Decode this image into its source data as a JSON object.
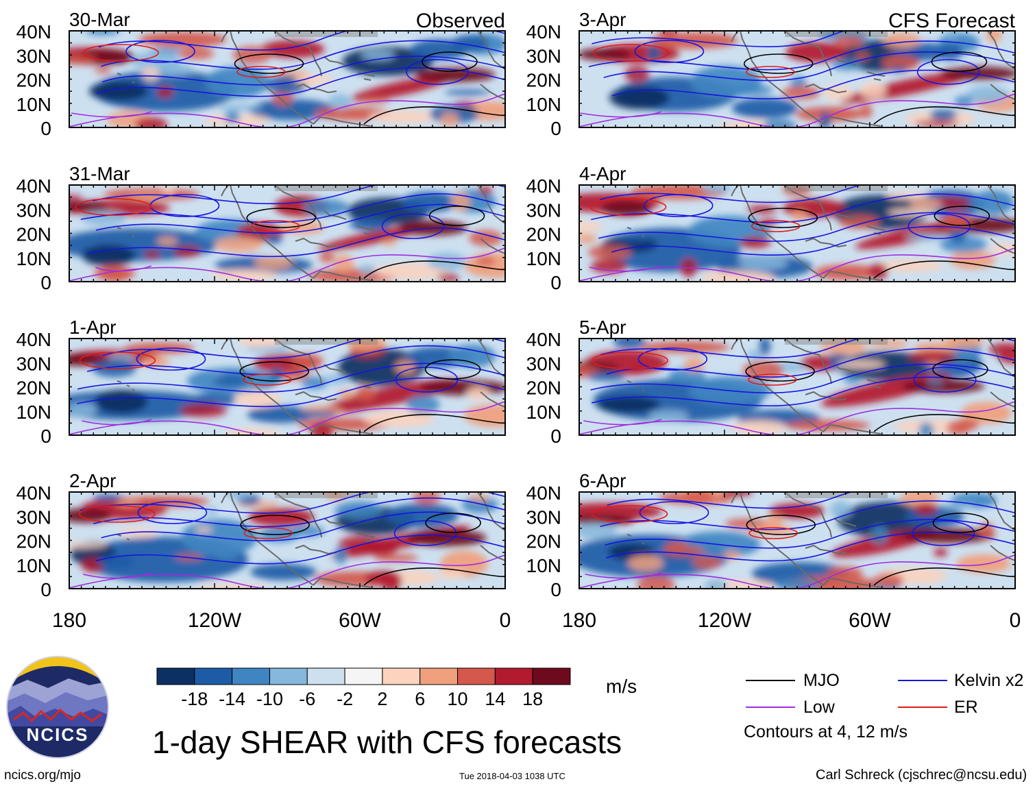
{
  "figure": {
    "title": "1-day SHEAR with CFS forecasts",
    "units": "m/s",
    "contour_note": "Contours at 4, 12 m/s",
    "footer_left": "ncics.org/mjo",
    "footer_center": "Tue 2018-04-03 1038 UTC",
    "footer_right": "Carl Schreck (cjschrec@ncsu.edu)",
    "logo_text": "NCICS"
  },
  "headers": {
    "observed": "Observed",
    "forecast": "CFS Forecast"
  },
  "panels": [
    {
      "date": "30-Mar",
      "column": "observed"
    },
    {
      "date": "31-Mar",
      "column": "observed"
    },
    {
      "date": "1-Apr",
      "column": "observed"
    },
    {
      "date": "2-Apr",
      "column": "observed"
    },
    {
      "date": "3-Apr",
      "column": "forecast"
    },
    {
      "date": "4-Apr",
      "column": "forecast"
    },
    {
      "date": "5-Apr",
      "column": "forecast"
    },
    {
      "date": "6-Apr",
      "column": "forecast"
    }
  ],
  "axes": {
    "lat_ticks": [
      "40N",
      "30N",
      "20N",
      "10N",
      "0"
    ],
    "lon_ticks": [
      "180",
      "120W",
      "60W",
      "0"
    ]
  },
  "colorbar": {
    "labels": [
      "-18",
      "-14",
      "-10",
      "-6",
      "-2",
      "2",
      "6",
      "10",
      "14",
      "18"
    ],
    "colors": [
      "#0d3062",
      "#1d5ba6",
      "#3f85c2",
      "#86b7dc",
      "#cde0f0",
      "#f5f5f5",
      "#fbd3bf",
      "#f0a07d",
      "#d4584c",
      "#b21a2e",
      "#6e0a1e"
    ]
  },
  "legend": [
    {
      "label": "MJO",
      "color": "#000000"
    },
    {
      "label": "Kelvin x2",
      "color": "#1515e0"
    },
    {
      "label": "Low",
      "color": "#a02ce0"
    },
    {
      "label": "ER",
      "color": "#e01a1a"
    }
  ],
  "colors": {
    "coast": "#6a6a6a",
    "frame": "#000000"
  }
}
